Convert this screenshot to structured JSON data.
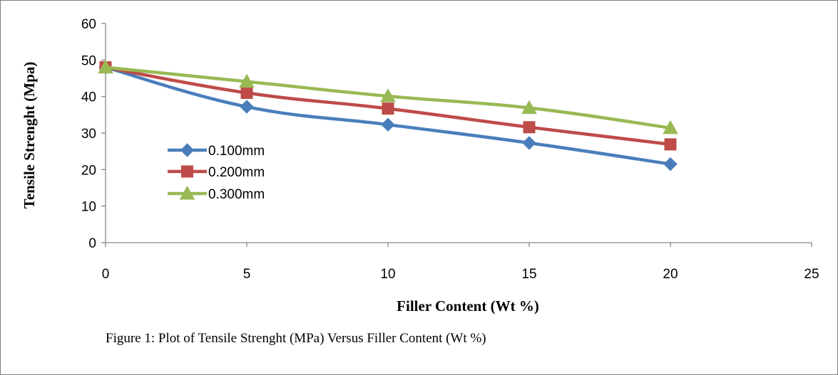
{
  "chart_data": {
    "type": "line",
    "title": "",
    "xlabel": "Filler Content (Wt %)",
    "ylabel": "Tensile Strenght (Mpa)",
    "xlim": [
      0,
      25
    ],
    "ylim": [
      0,
      60
    ],
    "x_ticks": [
      "0",
      "5",
      "10",
      "15",
      "20",
      "25"
    ],
    "y_ticks": [
      "0",
      "10",
      "20",
      "30",
      "40",
      "50",
      "60"
    ],
    "grid": false,
    "legend_position": "inside-left",
    "x": [
      0,
      5,
      10,
      15,
      20
    ],
    "series": [
      {
        "name": "0.100mm",
        "marker": "diamond",
        "color": "#4a7ebb",
        "values": [
          48,
          37.2,
          32.3,
          27.3,
          21.5
        ]
      },
      {
        "name": "0.200mm",
        "marker": "square",
        "color": "#be4b48",
        "values": [
          48,
          41,
          36.7,
          31.6,
          26.9
        ]
      },
      {
        "name": "0.300mm",
        "marker": "triangle",
        "color": "#98b954",
        "values": [
          48,
          44.1,
          40.1,
          36.9,
          31.4
        ]
      }
    ]
  },
  "caption": "Figure 1: Plot of Tensile Strenght (MPa) Versus Filler Content  (Wt %)"
}
